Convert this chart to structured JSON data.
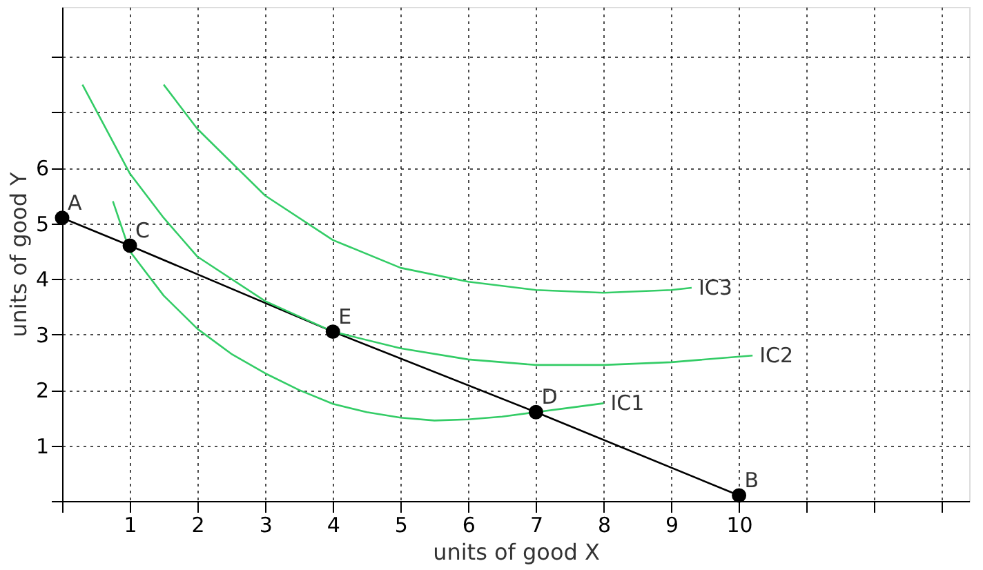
{
  "chart_data": {
    "type": "line",
    "xlabel": "units of good X",
    "ylabel": "units of good Y",
    "xlim": [
      0,
      13.4
    ],
    "ylim": [
      0,
      8.9
    ],
    "xticks": [
      {
        "value": 0,
        "label": null
      },
      1,
      2,
      3,
      4,
      5,
      6,
      7,
      8,
      9,
      10,
      {
        "value": 11,
        "label": null
      },
      {
        "value": 12,
        "label": null
      },
      {
        "value": 13,
        "label": null
      }
    ],
    "yticks": [
      {
        "value": 0,
        "label": null
      },
      1,
      2,
      3,
      4,
      5,
      6,
      {
        "value": 7,
        "label": null
      },
      {
        "value": 8,
        "label": null
      }
    ],
    "grid": true,
    "legend": false,
    "series": [
      {
        "color": "#000000",
        "marker": "circle",
        "x": [
          0,
          1,
          4,
          7,
          10
        ],
        "values": [
          5.1,
          4.6,
          3.05,
          1.6,
          0.1
        ]
      },
      {
        "name": "IC1",
        "color": "#33cc66",
        "x": [
          0.75,
          1,
          1.5,
          2,
          2.5,
          3,
          3.5,
          4,
          4.5,
          5,
          5.5,
          6,
          6.5,
          7,
          7.5,
          8
        ],
        "values": [
          5.4,
          4.5,
          3.7,
          3.1,
          2.65,
          2.3,
          2.0,
          1.75,
          1.6,
          1.5,
          1.45,
          1.47,
          1.52,
          1.6,
          1.68,
          1.76
        ]
      },
      {
        "name": "IC2",
        "color": "#33cc66",
        "x": [
          0.3,
          1,
          1.5,
          2,
          3,
          4,
          5,
          6,
          7,
          8,
          9,
          10.2
        ],
        "values": [
          7.5,
          5.9,
          5.1,
          4.4,
          3.6,
          3.05,
          2.75,
          2.55,
          2.45,
          2.45,
          2.5,
          2.62
        ]
      },
      {
        "name": "IC3",
        "color": "#33cc66",
        "x": [
          1.5,
          2,
          3,
          4,
          5,
          6,
          7,
          8,
          9,
          9.3
        ],
        "values": [
          7.5,
          6.7,
          5.5,
          4.7,
          4.2,
          3.95,
          3.8,
          3.75,
          3.8,
          3.84
        ]
      }
    ],
    "annotations": [
      {
        "text": "A",
        "x": 0,
        "y": 5.1
      },
      {
        "text": "C",
        "x": 1,
        "y": 4.6
      },
      {
        "text": "E",
        "x": 4,
        "y": 3.05
      },
      {
        "text": "D",
        "x": 7,
        "y": 1.6
      },
      {
        "text": "B",
        "x": 10,
        "y": 0.1
      }
    ]
  }
}
